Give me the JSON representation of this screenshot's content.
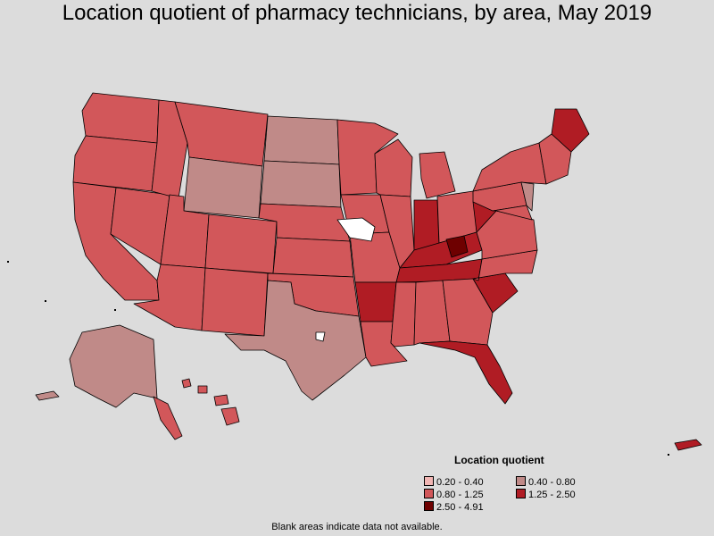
{
  "title": "Location quotient of pharmacy technicians, by area, May 2019",
  "legend": {
    "title": "Location quotient",
    "items": [
      {
        "label": "0.20 - 0.40",
        "color": "#f2b6b4"
      },
      {
        "label": "0.40 - 0.80",
        "color": "#c08a88"
      },
      {
        "label": "0.80 - 1.25",
        "color": "#d2575a"
      },
      {
        "label": "1.25 - 2.50",
        "color": "#b01c24"
      },
      {
        "label": "2.50 - 4.91",
        "color": "#6e0000"
      }
    ]
  },
  "footnote": "Blank areas indicate data not available.",
  "map": {
    "region": "United States",
    "boundary_color": "#000000",
    "blank_color": "#ffffff",
    "shown_regions": [
      "contiguous United States",
      "Alaska",
      "Hawaii",
      "Puerto Rico"
    ]
  }
}
